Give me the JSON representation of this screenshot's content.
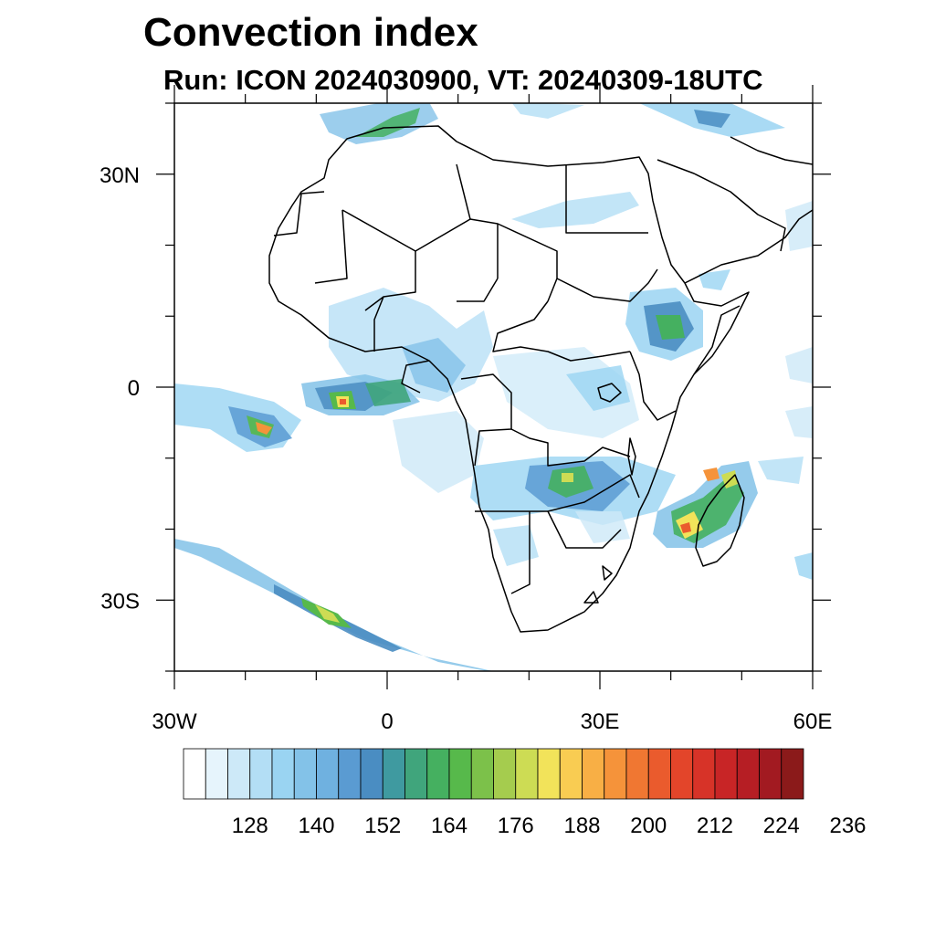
{
  "title": "Convection index",
  "subtitle": "Run: ICON 2024030900,  VT: 20240309-18UTC",
  "map": {
    "lon_range": [
      -30,
      60
    ],
    "lat_range": [
      -40,
      40
    ],
    "lat_tick_labels": [
      {
        "lat": 30,
        "label": "30N"
      },
      {
        "lat": 0,
        "label": "0"
      },
      {
        "lat": -30,
        "label": "30S"
      }
    ],
    "lon_tick_labels": [
      {
        "lon": -30,
        "label": "30W"
      },
      {
        "lon": 0,
        "label": "0"
      },
      {
        "lon": 30,
        "label": "30E"
      },
      {
        "lon": 60,
        "label": "60E"
      }
    ]
  },
  "colorbar": {
    "labels": [
      "128",
      "140",
      "152",
      "164",
      "176",
      "188",
      "200",
      "212",
      "224",
      "236"
    ],
    "colors": [
      "#ffffff",
      "#e6f4fc",
      "#cde9f8",
      "#b3def5",
      "#9ad4f2",
      "#83c2e8",
      "#6fb1e0",
      "#5a9bd2",
      "#4a8dc2",
      "#3f9aa0",
      "#40a57c",
      "#45b060",
      "#57b94b",
      "#7cc14a",
      "#a5cc4e",
      "#cddc54",
      "#f2e35a",
      "#f9cc52",
      "#f8af45",
      "#f5933a",
      "#f07732",
      "#ea5b2d",
      "#e3452a",
      "#d73328",
      "#c82526",
      "#b61e24",
      "#a21a21",
      "#8b1a1a"
    ]
  }
}
